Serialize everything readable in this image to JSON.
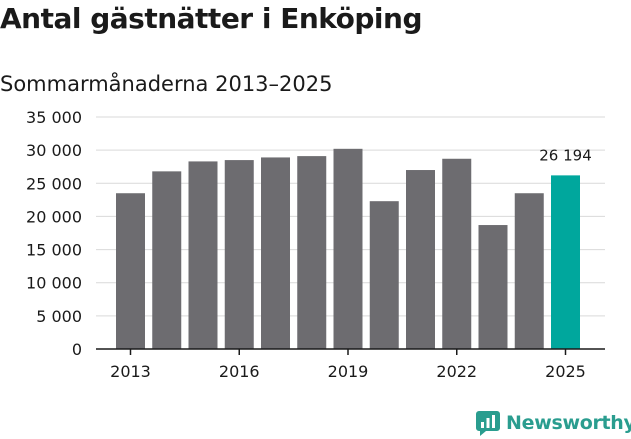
{
  "title": "Antal gästnätter i Enköping",
  "subtitle": "Sommarmånaderna 2013–2025",
  "brand": {
    "name": "Newsworthy"
  },
  "colors": {
    "bar": "#6d6c70",
    "highlight": "#00a79d",
    "grid": "#d9d9d9",
    "axis": "#1a1a1a",
    "brand": "#2a9d8f"
  },
  "chart_data": {
    "type": "bar",
    "categories": [
      "2013",
      "2014",
      "2015",
      "2016",
      "2017",
      "2018",
      "2019",
      "2020",
      "2021",
      "2022",
      "2023",
      "2024",
      "2025"
    ],
    "values": [
      23500,
      26800,
      28300,
      28500,
      28900,
      29100,
      30200,
      22300,
      27000,
      28700,
      18700,
      23500,
      26194
    ],
    "highlight_index": 12,
    "highlight_label": "26 194",
    "x_tick_labels": [
      "2013",
      "2016",
      "2019",
      "2022",
      "2025"
    ],
    "y_tick_labels": [
      "0",
      "5 000",
      "10 000",
      "15 000",
      "20 000",
      "25 000",
      "30 000",
      "35 000"
    ],
    "y_ticks": [
      0,
      5000,
      10000,
      15000,
      20000,
      25000,
      30000,
      35000
    ],
    "ylim": [
      0,
      35000
    ],
    "grid": true,
    "xlabel": "",
    "ylabel": ""
  }
}
